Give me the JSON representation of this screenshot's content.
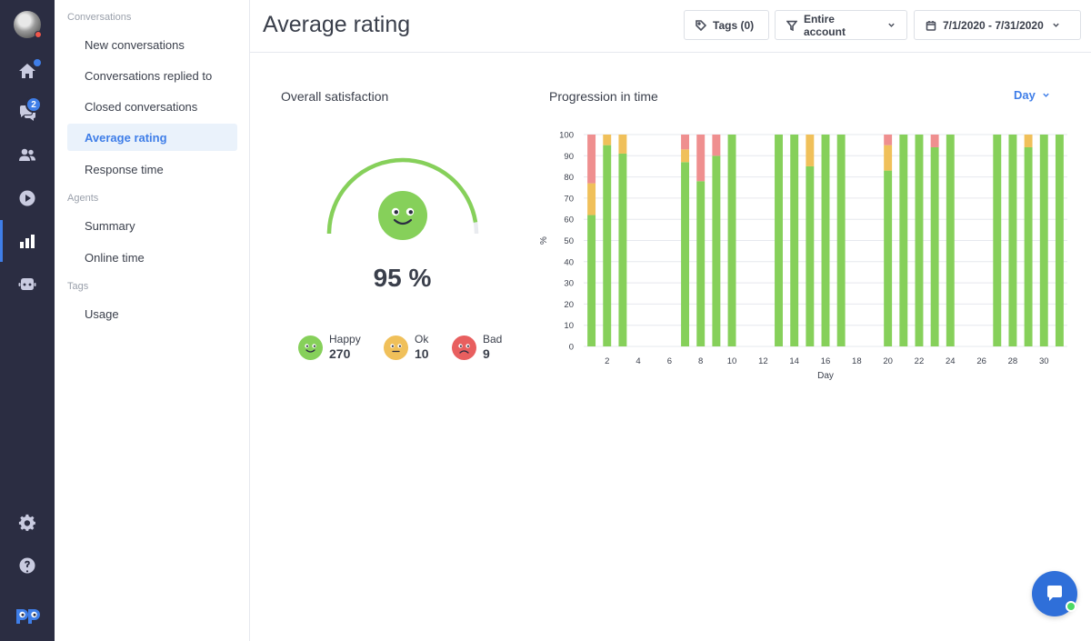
{
  "page": {
    "title": "Average rating"
  },
  "colors": {
    "happy": "#86d05a",
    "ok": "#f0c05a",
    "bad": "#ef8f8f",
    "accent": "#3f7ee8",
    "rail": "#2b2d42"
  },
  "rail": {
    "avatar_icon": "user-avatar",
    "items": [
      {
        "icon": "home-icon"
      },
      {
        "icon": "chat-icon",
        "badge": "2"
      },
      {
        "icon": "users-icon"
      },
      {
        "icon": "play-icon"
      },
      {
        "icon": "bar-chart-icon"
      },
      {
        "icon": "bot-icon"
      },
      {
        "icon": "gear-icon"
      },
      {
        "icon": "help-icon"
      },
      {
        "icon": "app-logo"
      }
    ]
  },
  "sidebar": {
    "sections": [
      {
        "title": "Conversations",
        "items": [
          "New conversations",
          "Conversations replied to",
          "Closed conversations",
          "Average rating",
          "Response time"
        ]
      },
      {
        "title": "Agents",
        "items": [
          "Summary",
          "Online time"
        ]
      },
      {
        "title": "Tags",
        "items": [
          "Usage"
        ]
      }
    ],
    "active_item": "Average rating"
  },
  "header": {
    "tags_label": "Tags (0)",
    "scope_label": "Entire account",
    "date_range": "7/1/2020 - 7/31/2020"
  },
  "satisfaction": {
    "title": "Overall satisfaction",
    "percent_text": "95 %",
    "gauge_fraction": 0.95,
    "legend": [
      {
        "label": "Happy",
        "value": "270"
      },
      {
        "label": "Ok",
        "value": "10"
      },
      {
        "label": "Bad",
        "value": "9"
      }
    ]
  },
  "progression": {
    "title": "Progression in time",
    "granularity": "Day"
  },
  "chart_data": {
    "type": "bar",
    "stacked": true,
    "xlabel": "Day",
    "ylabel": "%",
    "ylim": [
      0,
      100
    ],
    "yticks": [
      0,
      10,
      20,
      30,
      40,
      50,
      60,
      70,
      80,
      90,
      100
    ],
    "xticks": [
      2,
      4,
      6,
      8,
      10,
      12,
      14,
      16,
      18,
      20,
      22,
      24,
      26,
      28,
      30
    ],
    "grid": true,
    "x": [
      1,
      2,
      3,
      4,
      5,
      6,
      7,
      8,
      9,
      10,
      11,
      12,
      13,
      14,
      15,
      16,
      17,
      18,
      19,
      20,
      21,
      22,
      23,
      24,
      25,
      26,
      27,
      28,
      29,
      30,
      31
    ],
    "series": [
      {
        "name": "Happy",
        "color": "#86d05a",
        "values": [
          62,
          95,
          91,
          0,
          0,
          0,
          87,
          78,
          90,
          100,
          0,
          0,
          100,
          100,
          85,
          100,
          100,
          0,
          0,
          83,
          100,
          100,
          94,
          100,
          0,
          0,
          100,
          100,
          94,
          100,
          100
        ]
      },
      {
        "name": "Ok",
        "color": "#f0c05a",
        "values": [
          15,
          5,
          9,
          0,
          0,
          0,
          6,
          0,
          0,
          0,
          0,
          0,
          0,
          0,
          15,
          0,
          0,
          0,
          0,
          12,
          0,
          0,
          0,
          0,
          0,
          0,
          0,
          0,
          6,
          0,
          0
        ]
      },
      {
        "name": "Bad",
        "color": "#ef8f8f",
        "values": [
          23,
          0,
          0,
          0,
          0,
          0,
          7,
          22,
          10,
          0,
          0,
          0,
          0,
          0,
          0,
          0,
          0,
          0,
          0,
          5,
          0,
          0,
          6,
          0,
          0,
          0,
          0,
          0,
          0,
          0,
          0
        ]
      }
    ]
  }
}
